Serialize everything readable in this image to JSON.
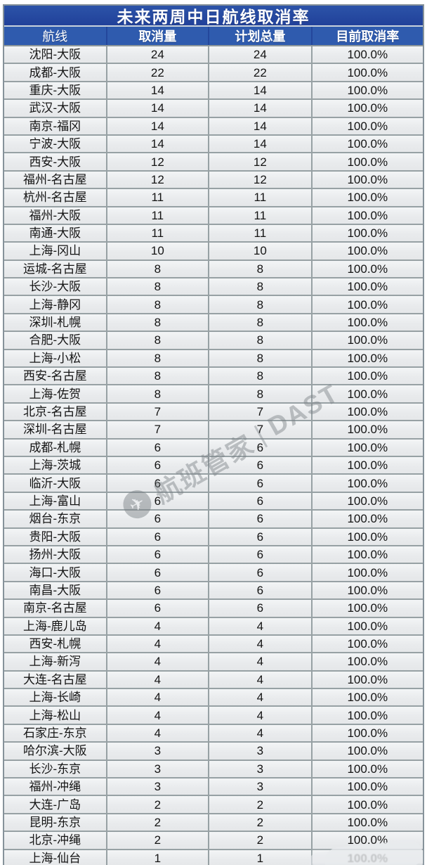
{
  "title": "未来两周中日航线取消率",
  "watermark": {
    "logo_icon": "airline-steward-logo",
    "brand": "航班管家",
    "divider": "|",
    "suffix": "DAST"
  },
  "colors": {
    "title_bg": "#21419A",
    "header_bg": "#2F5BAE",
    "header_text": "#FFFFFF",
    "row_bg": "#EAECEE",
    "grid_line": "#97A1A4",
    "body_text": "#141414"
  },
  "chart_data": {
    "type": "table",
    "title": "未来两周中日航线取消率",
    "columns": [
      "航线",
      "取消量",
      "计划总量",
      "目前取消率"
    ],
    "rows": [
      [
        "沈阳-大阪",
        "24",
        "24",
        "100.0%"
      ],
      [
        "成都-大阪",
        "22",
        "22",
        "100.0%"
      ],
      [
        "重庆-大阪",
        "14",
        "14",
        "100.0%"
      ],
      [
        "武汉-大阪",
        "14",
        "14",
        "100.0%"
      ],
      [
        "南京-福冈",
        "14",
        "14",
        "100.0%"
      ],
      [
        "宁波-大阪",
        "14",
        "14",
        "100.0%"
      ],
      [
        "西安-大阪",
        "12",
        "12",
        "100.0%"
      ],
      [
        "福州-名古屋",
        "12",
        "12",
        "100.0%"
      ],
      [
        "杭州-名古屋",
        "11",
        "11",
        "100.0%"
      ],
      [
        "福州-大阪",
        "11",
        "11",
        "100.0%"
      ],
      [
        "南通-大阪",
        "11",
        "11",
        "100.0%"
      ],
      [
        "上海-冈山",
        "10",
        "10",
        "100.0%"
      ],
      [
        "运城-名古屋",
        "8",
        "8",
        "100.0%"
      ],
      [
        "长沙-大阪",
        "8",
        "8",
        "100.0%"
      ],
      [
        "上海-静冈",
        "8",
        "8",
        "100.0%"
      ],
      [
        "深圳-札幌",
        "8",
        "8",
        "100.0%"
      ],
      [
        "合肥-大阪",
        "8",
        "8",
        "100.0%"
      ],
      [
        "上海-小松",
        "8",
        "8",
        "100.0%"
      ],
      [
        "西安-名古屋",
        "8",
        "8",
        "100.0%"
      ],
      [
        "上海-佐贺",
        "8",
        "8",
        "100.0%"
      ],
      [
        "北京-名古屋",
        "7",
        "7",
        "100.0%"
      ],
      [
        "深圳-名古屋",
        "7",
        "7",
        "100.0%"
      ],
      [
        "成都-札幌",
        "6",
        "6",
        "100.0%"
      ],
      [
        "上海-茨城",
        "6",
        "6",
        "100.0%"
      ],
      [
        "临沂-大阪",
        "6",
        "6",
        "100.0%"
      ],
      [
        "上海-富山",
        "6",
        "6",
        "100.0%"
      ],
      [
        "烟台-东京",
        "6",
        "6",
        "100.0%"
      ],
      [
        "贵阳-大阪",
        "6",
        "6",
        "100.0%"
      ],
      [
        "扬州-大阪",
        "6",
        "6",
        "100.0%"
      ],
      [
        "海口-大阪",
        "6",
        "6",
        "100.0%"
      ],
      [
        "南昌-大阪",
        "6",
        "6",
        "100.0%"
      ],
      [
        "南京-名古屋",
        "6",
        "6",
        "100.0%"
      ],
      [
        "上海-鹿儿岛",
        "4",
        "4",
        "100.0%"
      ],
      [
        "西安-札幌",
        "4",
        "4",
        "100.0%"
      ],
      [
        "上海-新泻",
        "4",
        "4",
        "100.0%"
      ],
      [
        "大连-名古屋",
        "4",
        "4",
        "100.0%"
      ],
      [
        "上海-长崎",
        "4",
        "4",
        "100.0%"
      ],
      [
        "上海-松山",
        "4",
        "4",
        "100.0%"
      ],
      [
        "石家庄-东京",
        "4",
        "4",
        "100.0%"
      ],
      [
        "哈尔滨-大阪",
        "3",
        "3",
        "100.0%"
      ],
      [
        "长沙-东京",
        "3",
        "3",
        "100.0%"
      ],
      [
        "福州-冲绳",
        "3",
        "3",
        "100.0%"
      ],
      [
        "大连-广岛",
        "2",
        "2",
        "100.0%"
      ],
      [
        "昆明-东京",
        "2",
        "2",
        "100.0%"
      ],
      [
        "北京-冲绳",
        "2",
        "2",
        "100.0%"
      ],
      [
        "上海-仙台",
        "1",
        "1",
        "100.0%"
      ]
    ]
  }
}
